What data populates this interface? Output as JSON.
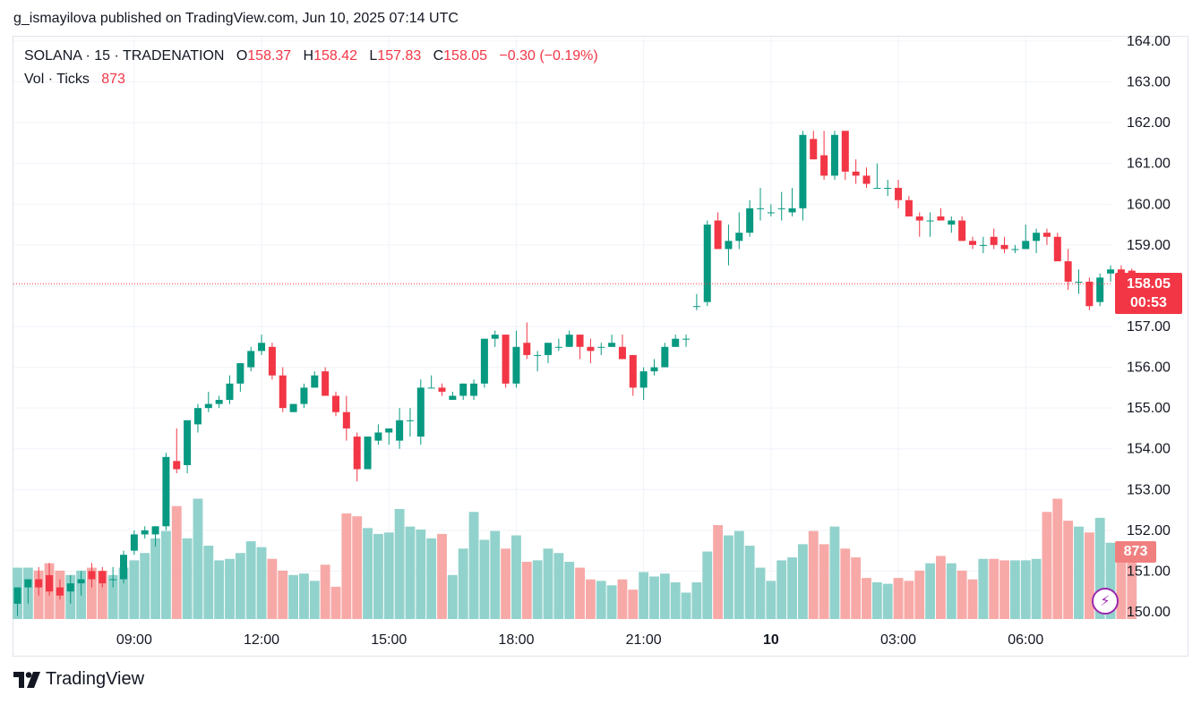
{
  "publisher": "g_ismayilova published on TradingView.com, Jun 10, 2025 07:14 UTC",
  "legend": {
    "symbol": "SOLANA · 15 · TRADENATION",
    "o_label": "O",
    "o_value": "158.37",
    "h_label": "H",
    "h_value": "158.42",
    "l_label": "L",
    "l_value": "157.83",
    "c_label": "C",
    "c_value": "158.05",
    "change": "−0.30 (−0.19%)",
    "vol_label": "Vol · Ticks",
    "vol_value": "873"
  },
  "price_badge": {
    "price": "158.05",
    "countdown": "00:53"
  },
  "volume_badge": "873",
  "brand": "TradingView",
  "colors": {
    "up": "#089981",
    "down": "#f23645",
    "vol_up": "#92d2cc",
    "vol_down": "#f7a9a7",
    "grid": "#f0f3fa"
  },
  "chart_data": {
    "type": "candlestick",
    "symbol": "SOLANA",
    "interval": "15",
    "ylim": [
      149.8,
      164.15
    ],
    "yticks": [
      "150.00",
      "151.00",
      "152.00",
      "153.00",
      "154.00",
      "155.00",
      "156.00",
      "157.00",
      "158.00",
      "159.00",
      "160.00",
      "161.00",
      "162.00",
      "163.00",
      "164.00"
    ],
    "xticks": [
      {
        "label": "09:00",
        "index": 11
      },
      {
        "label": "12:00",
        "index": 23
      },
      {
        "label": "15:00",
        "index": 35
      },
      {
        "label": "18:00",
        "index": 47
      },
      {
        "label": "21:00",
        "index": 59
      },
      {
        "label": "10",
        "index": 71
      },
      {
        "label": "03:00",
        "index": 83
      },
      {
        "label": "06:00",
        "index": 95
      }
    ],
    "last_price": 158.05,
    "vol_max": 100,
    "candles": [
      [
        150.2,
        150.6,
        149.9,
        150.6,
        35
      ],
      [
        150.6,
        150.8,
        150.2,
        150.8,
        35
      ],
      [
        150.8,
        151.1,
        150.4,
        150.6,
        33
      ],
      [
        150.9,
        151.2,
        150.4,
        150.5,
        38
      ],
      [
        150.6,
        150.8,
        150.3,
        150.4,
        33
      ],
      [
        150.5,
        150.9,
        150.2,
        150.7,
        30
      ],
      [
        150.7,
        151.0,
        150.4,
        150.8,
        33
      ],
      [
        151.0,
        151.2,
        150.6,
        150.8,
        35
      ],
      [
        151.0,
        151.1,
        150.6,
        150.7,
        33
      ],
      [
        150.8,
        151.1,
        150.6,
        150.8,
        30
      ],
      [
        150.8,
        151.5,
        150.7,
        151.4,
        35
      ],
      [
        151.5,
        152.0,
        151.4,
        151.9,
        40
      ],
      [
        151.9,
        152.1,
        151.8,
        152.0,
        45
      ],
      [
        151.9,
        152.1,
        151.6,
        152.1,
        55
      ],
      [
        152.1,
        153.9,
        152.0,
        153.8,
        60
      ],
      [
        153.7,
        154.5,
        153.4,
        153.5,
        77
      ],
      [
        153.6,
        154.7,
        153.4,
        154.7,
        55
      ],
      [
        154.6,
        155.1,
        154.4,
        155.0,
        82
      ],
      [
        155.0,
        155.4,
        154.9,
        155.1,
        50
      ],
      [
        155.1,
        155.3,
        155.0,
        155.2,
        40
      ],
      [
        155.2,
        155.8,
        155.1,
        155.6,
        41
      ],
      [
        155.6,
        156.1,
        155.4,
        156.1,
        45
      ],
      [
        156.0,
        156.5,
        155.9,
        156.4,
        53
      ],
      [
        156.4,
        156.8,
        156.3,
        156.6,
        49
      ],
      [
        156.5,
        156.6,
        155.7,
        155.8,
        41
      ],
      [
        155.8,
        156.0,
        154.9,
        155.0,
        33
      ],
      [
        154.9,
        155.1,
        154.9,
        155.1,
        30
      ],
      [
        155.1,
        155.6,
        155.0,
        155.5,
        31
      ],
      [
        155.5,
        155.9,
        155.5,
        155.8,
        26
      ],
      [
        155.9,
        156.0,
        155.3,
        155.3,
        37
      ],
      [
        155.3,
        155.4,
        154.8,
        154.9,
        22
      ],
      [
        154.9,
        155.3,
        154.2,
        154.5,
        72
      ],
      [
        154.3,
        154.4,
        153.2,
        153.5,
        70
      ],
      [
        153.5,
        154.3,
        153.5,
        154.3,
        62
      ],
      [
        154.2,
        154.6,
        154.1,
        154.4,
        58
      ],
      [
        154.4,
        154.5,
        154.1,
        154.5,
        59
      ],
      [
        154.2,
        155.0,
        154.0,
        154.7,
        75
      ],
      [
        154.7,
        155.0,
        154.3,
        154.7,
        63
      ],
      [
        154.3,
        155.7,
        154.1,
        155.5,
        61
      ],
      [
        155.5,
        155.8,
        155.5,
        155.5,
        55
      ],
      [
        155.5,
        155.6,
        155.3,
        155.4,
        58
      ],
      [
        155.2,
        155.4,
        155.2,
        155.3,
        30
      ],
      [
        155.3,
        155.6,
        155.2,
        155.6,
        48
      ],
      [
        155.3,
        155.7,
        155.2,
        155.6,
        73
      ],
      [
        155.6,
        156.7,
        155.5,
        156.7,
        54
      ],
      [
        156.7,
        156.9,
        156.5,
        156.8,
        60
      ],
      [
        156.8,
        156.8,
        155.5,
        155.6,
        48
      ],
      [
        155.6,
        156.9,
        155.5,
        156.5,
        57
      ],
      [
        156.6,
        157.1,
        156.2,
        156.3,
        39
      ],
      [
        156.3,
        156.4,
        155.9,
        156.3,
        40
      ],
      [
        156.3,
        156.6,
        156.1,
        156.6,
        48
      ],
      [
        156.5,
        156.7,
        156.4,
        156.5,
        45
      ],
      [
        156.5,
        156.9,
        156.5,
        156.8,
        39
      ],
      [
        156.8,
        156.8,
        156.2,
        156.5,
        35
      ],
      [
        156.5,
        156.7,
        156.1,
        156.4,
        27
      ],
      [
        156.5,
        156.6,
        156.3,
        156.5,
        26
      ],
      [
        156.5,
        156.8,
        156.5,
        156.6,
        23
      ],
      [
        156.5,
        156.8,
        156.2,
        156.2,
        27
      ],
      [
        156.3,
        156.3,
        155.3,
        155.5,
        20
      ],
      [
        155.5,
        156.0,
        155.2,
        155.9,
        32
      ],
      [
        155.9,
        156.2,
        155.8,
        156.0,
        29
      ],
      [
        156.0,
        156.6,
        156.0,
        156.5,
        31
      ],
      [
        156.5,
        156.8,
        156.5,
        156.7,
        25
      ],
      [
        156.7,
        156.8,
        156.5,
        156.7,
        18
      ],
      [
        157.5,
        157.8,
        157.4,
        157.5,
        25
      ],
      [
        157.6,
        159.6,
        157.5,
        159.5,
        46
      ],
      [
        159.6,
        159.8,
        158.9,
        158.9,
        64
      ],
      [
        158.9,
        159.5,
        158.5,
        159.1,
        57
      ],
      [
        159.1,
        159.8,
        158.9,
        159.3,
        60
      ],
      [
        159.3,
        160.1,
        159.2,
        159.9,
        50
      ],
      [
        159.9,
        160.4,
        159.6,
        159.9,
        35
      ],
      [
        159.8,
        160.0,
        159.7,
        159.8,
        26
      ],
      [
        159.9,
        160.3,
        159.6,
        159.9,
        40
      ],
      [
        159.8,
        160.4,
        159.7,
        159.9,
        42
      ],
      [
        159.9,
        161.8,
        159.6,
        161.7,
        51
      ],
      [
        161.6,
        161.8,
        161.1,
        161.1,
        60
      ],
      [
        161.2,
        161.8,
        160.6,
        160.7,
        51
      ],
      [
        160.7,
        161.8,
        160.6,
        161.7,
        63
      ],
      [
        161.8,
        161.8,
        160.6,
        160.8,
        48
      ],
      [
        160.8,
        161.1,
        160.5,
        160.7,
        42
      ],
      [
        160.7,
        160.9,
        160.4,
        160.5,
        28
      ],
      [
        160.4,
        161.0,
        160.4,
        160.4,
        25
      ],
      [
        160.4,
        160.6,
        160.2,
        160.4,
        24
      ],
      [
        160.4,
        160.6,
        159.9,
        160.1,
        28
      ],
      [
        160.1,
        160.2,
        159.7,
        159.7,
        26
      ],
      [
        159.7,
        159.8,
        159.2,
        159.6,
        33
      ],
      [
        159.6,
        159.8,
        159.2,
        159.6,
        38
      ],
      [
        159.7,
        159.9,
        159.6,
        159.6,
        43
      ],
      [
        159.5,
        159.7,
        159.3,
        159.6,
        38
      ],
      [
        159.6,
        159.7,
        159.1,
        159.1,
        33
      ],
      [
        159.1,
        159.2,
        158.9,
        159.0,
        27
      ],
      [
        159.0,
        159.2,
        158.8,
        159.0,
        41
      ],
      [
        159.2,
        159.4,
        158.9,
        159.0,
        41
      ],
      [
        159.0,
        159.2,
        158.8,
        158.9,
        40
      ],
      [
        158.9,
        159.0,
        158.8,
        158.9,
        40
      ],
      [
        158.9,
        159.5,
        158.9,
        159.1,
        40
      ],
      [
        159.1,
        159.4,
        158.8,
        159.3,
        41
      ],
      [
        159.3,
        159.4,
        159.0,
        159.2,
        73
      ],
      [
        159.2,
        159.3,
        158.6,
        158.6,
        82
      ],
      [
        158.6,
        158.9,
        157.9,
        158.1,
        67
      ],
      [
        158.1,
        158.4,
        157.8,
        158.1,
        63
      ],
      [
        158.1,
        158.2,
        157.4,
        157.5,
        59
      ],
      [
        157.6,
        158.3,
        157.5,
        158.2,
        69
      ],
      [
        158.3,
        158.5,
        158.1,
        158.4,
        52
      ],
      [
        158.4,
        158.5,
        158.2,
        158.3,
        43
      ],
      [
        158.37,
        158.42,
        157.83,
        158.05,
        43
      ]
    ]
  }
}
